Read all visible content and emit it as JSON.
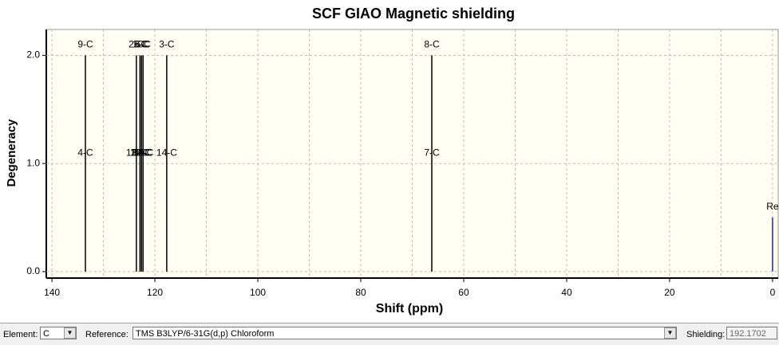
{
  "chart_data": {
    "type": "stick",
    "title": "SCF GIAO Magnetic shielding",
    "x_label": "Shift (ppm)",
    "y_label": "Degeneracy",
    "xlim": [
      141.1,
      -1.1
    ],
    "xticks": [
      140,
      120,
      100,
      80,
      60,
      40,
      20,
      0
    ],
    "minor_xticks": [
      130,
      110,
      90,
      70,
      50,
      30,
      10
    ],
    "ylim": [
      -0.06,
      2.24
    ],
    "yticks": [
      {
        "value": 0,
        "label": "0.0"
      },
      {
        "value": 1,
        "label": "1.0"
      },
      {
        "value": 2,
        "label": "2.0"
      }
    ],
    "grid": true,
    "series": [
      {
        "color": "#000000",
        "x": [
          133.5,
          123.6,
          122.9,
          122.6,
          122.3,
          117.7,
          66.2
        ],
        "values": [
          2,
          2,
          2,
          2,
          2,
          2,
          2
        ],
        "labels": [
          [
            "4-C",
            "9-C"
          ],
          [
            "13-C",
            "2-C"
          ],
          [
            "11-C",
            "1-C"
          ],
          [
            "12-C",
            "5-C"
          ],
          [
            "10-C",
            "6-C"
          ],
          [
            "14-C",
            "3-C"
          ],
          [
            "7-C",
            "8-C"
          ]
        ]
      },
      {
        "color": "#2020c0",
        "x": [
          0
        ],
        "values": [
          0.5
        ],
        "labels": [
          [
            "Re"
          ]
        ]
      }
    ]
  },
  "controls": {
    "element_label": "Element:",
    "element": "C",
    "reference_label": "Reference:",
    "reference": "TMS B3LYP/6-31G(d,p) Chloroform",
    "shielding_label": "Shielding:",
    "shielding": "192.1702"
  }
}
